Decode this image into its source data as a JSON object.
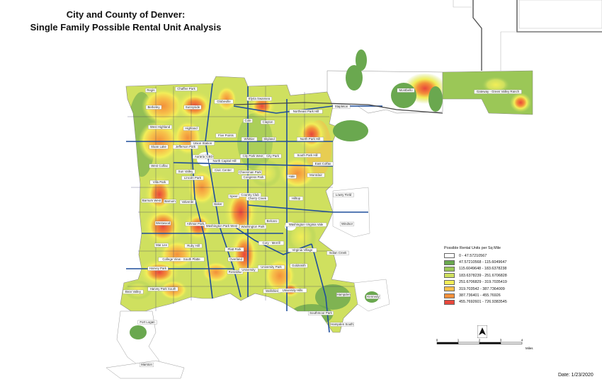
{
  "title": {
    "line1": "City and County of Denver:",
    "line2": "Single Family Possible Rental Unit Analysis"
  },
  "legend": {
    "title": "Possible Rental Units per Sq Mile",
    "classes": [
      {
        "label": "0 - 47.57210567",
        "color": "#ffffff"
      },
      {
        "label": "47.57210568 - 115.6049647",
        "color": "#6aa84f"
      },
      {
        "label": "115.6049648 - 183.6378238",
        "color": "#9bc757"
      },
      {
        "label": "183.6378239 - 251.6706828",
        "color": "#cfe05f"
      },
      {
        "label": "251.6706829 - 319.7035419",
        "color": "#f2ee58"
      },
      {
        "label": "319.703542 - 387.7364009",
        "color": "#f7c04a"
      },
      {
        "label": "387.736401 - 455.76926",
        "color": "#f3903a"
      },
      {
        "label": "455.7692601 - 726.9383545",
        "color": "#e8473b"
      }
    ]
  },
  "scale": {
    "ticks": [
      "0",
      "1",
      "2",
      "3",
      "4"
    ],
    "unit": "Miles"
  },
  "date": "Date: 1/23/2020",
  "neighborhoods": [
    "Regis",
    "Chaffee Park",
    "Berkeley",
    "Sunnyside",
    "Globeville",
    "Elyria Swansea",
    "Northeast Park Hill",
    "Stapleton",
    "Montbello",
    "Gateway - Green Valley Ranch",
    "West Highland",
    "Highland",
    "Cole",
    "Clayton",
    "North Park Hill",
    "Sloan Lake",
    "Jefferson Park",
    "Union Station",
    "Five Points",
    "Whittier",
    "Skyland",
    "South Park Hill",
    "East Colfax",
    "West Colfax",
    "Auraria",
    "CBD",
    "North Capitol Hill",
    "City Park West",
    "City Park",
    "Sun Valley",
    "Lincoln Park",
    "Civic Center",
    "Cheesman Park",
    "Congress Park",
    "Hale",
    "Montclair",
    "Lowry Field",
    "Villa Park",
    "Barnum West",
    "Barnum",
    "Valverde",
    "Baker",
    "Speer",
    "Country Club",
    "Cherry Creek",
    "Hilltop",
    "Westwood",
    "Athmar Park",
    "Washington Park West",
    "Washington Park",
    "Belcaro",
    "Washington Virginia Vale",
    "Windsor",
    "Mar Lee",
    "Ruby Hill",
    "Platt Park",
    "Cory - Merrill",
    "Virginia Village",
    "Indian Creek",
    "Harvey Park",
    "College View - South Platte",
    "Overland",
    "Rosedale",
    "University",
    "University Park",
    "Goldsmith",
    "Bear Valley",
    "Harvey Park South",
    "Wellshire",
    "University Hills",
    "Hampden",
    "Kennedy",
    "Southmoor Park",
    "Hampden South",
    "Fort Logan",
    "Marston"
  ]
}
